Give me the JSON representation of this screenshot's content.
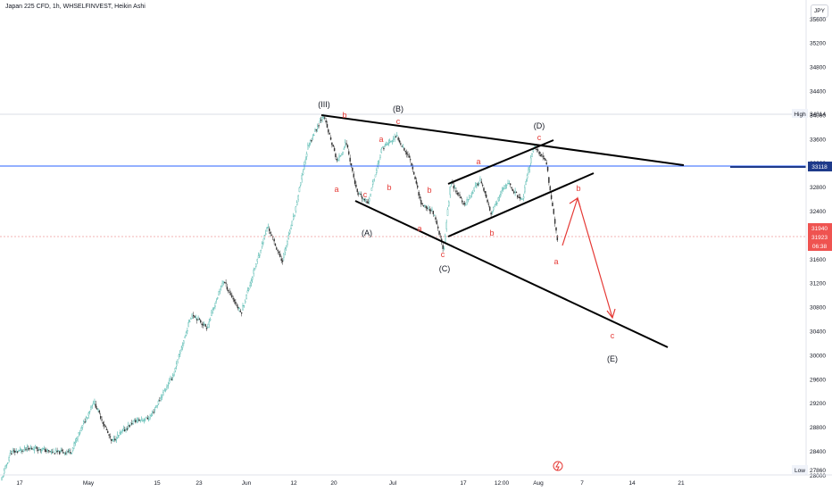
{
  "header": {
    "title": "Japan 225 CFD, 1h, WHSELFINVEST, Heikin Ashi",
    "currency": "JPY"
  },
  "colors": {
    "up": "#26a69a",
    "down": "#ef5350",
    "candle": "#2d2d2d",
    "resistance": "#2962ff",
    "annotation": "#e53935",
    "trendline": "#000000"
  },
  "price_tags": {
    "high_label": "High",
    "high_value": "34014",
    "level_value": "33118",
    "price1": "31940",
    "price2": "31923",
    "countdown": "06:38",
    "low_label": "Low",
    "low_value": "27860"
  },
  "chart_data": {
    "type": "candlestick",
    "yaxis": {
      "ticks": [
        35600,
        35200,
        34800,
        34400,
        34000,
        33600,
        33200,
        32800,
        32400,
        32000,
        31600,
        31200,
        30800,
        30400,
        30000,
        29600,
        29200,
        28800,
        28400,
        28000
      ]
    },
    "xaxis": {
      "ticks": [
        "17",
        "May",
        "15",
        "23",
        "Jun",
        "12",
        "20",
        "Jul",
        "17",
        "12:00",
        "Aug",
        "7",
        "14",
        "21"
      ]
    },
    "price_path": [
      [
        0,
        27860
      ],
      [
        12,
        28380
      ],
      [
        40,
        28460
      ],
      [
        60,
        28380
      ],
      [
        80,
        28400
      ],
      [
        105,
        29240
      ],
      [
        125,
        28560
      ],
      [
        150,
        28900
      ],
      [
        168,
        28960
      ],
      [
        195,
        29700
      ],
      [
        215,
        30700
      ],
      [
        232,
        30460
      ],
      [
        250,
        31250
      ],
      [
        270,
        30700
      ],
      [
        300,
        32150
      ],
      [
        316,
        31560
      ],
      [
        330,
        32350
      ],
      [
        345,
        33480
      ],
      [
        362,
        34014
      ],
      [
        378,
        33220
      ],
      [
        388,
        33550
      ],
      [
        400,
        32700
      ],
      [
        412,
        32530
      ],
      [
        428,
        33450
      ],
      [
        445,
        33640
      ],
      [
        460,
        33250
      ],
      [
        472,
        32520
      ],
      [
        485,
        32400
      ],
      [
        497,
        31750
      ],
      [
        505,
        32900
      ],
      [
        520,
        32500
      ],
      [
        538,
        32930
      ],
      [
        550,
        32350
      ],
      [
        568,
        32880
      ],
      [
        585,
        32560
      ],
      [
        598,
        33500
      ],
      [
        612,
        33200
      ],
      [
        625,
        31860
      ]
    ],
    "annotations": {
      "waves": [
        "(III)",
        "(A)",
        "(B)",
        "(C)",
        "(D)",
        "(E)"
      ],
      "subwaves": [
        "a",
        "b",
        "c"
      ]
    }
  }
}
